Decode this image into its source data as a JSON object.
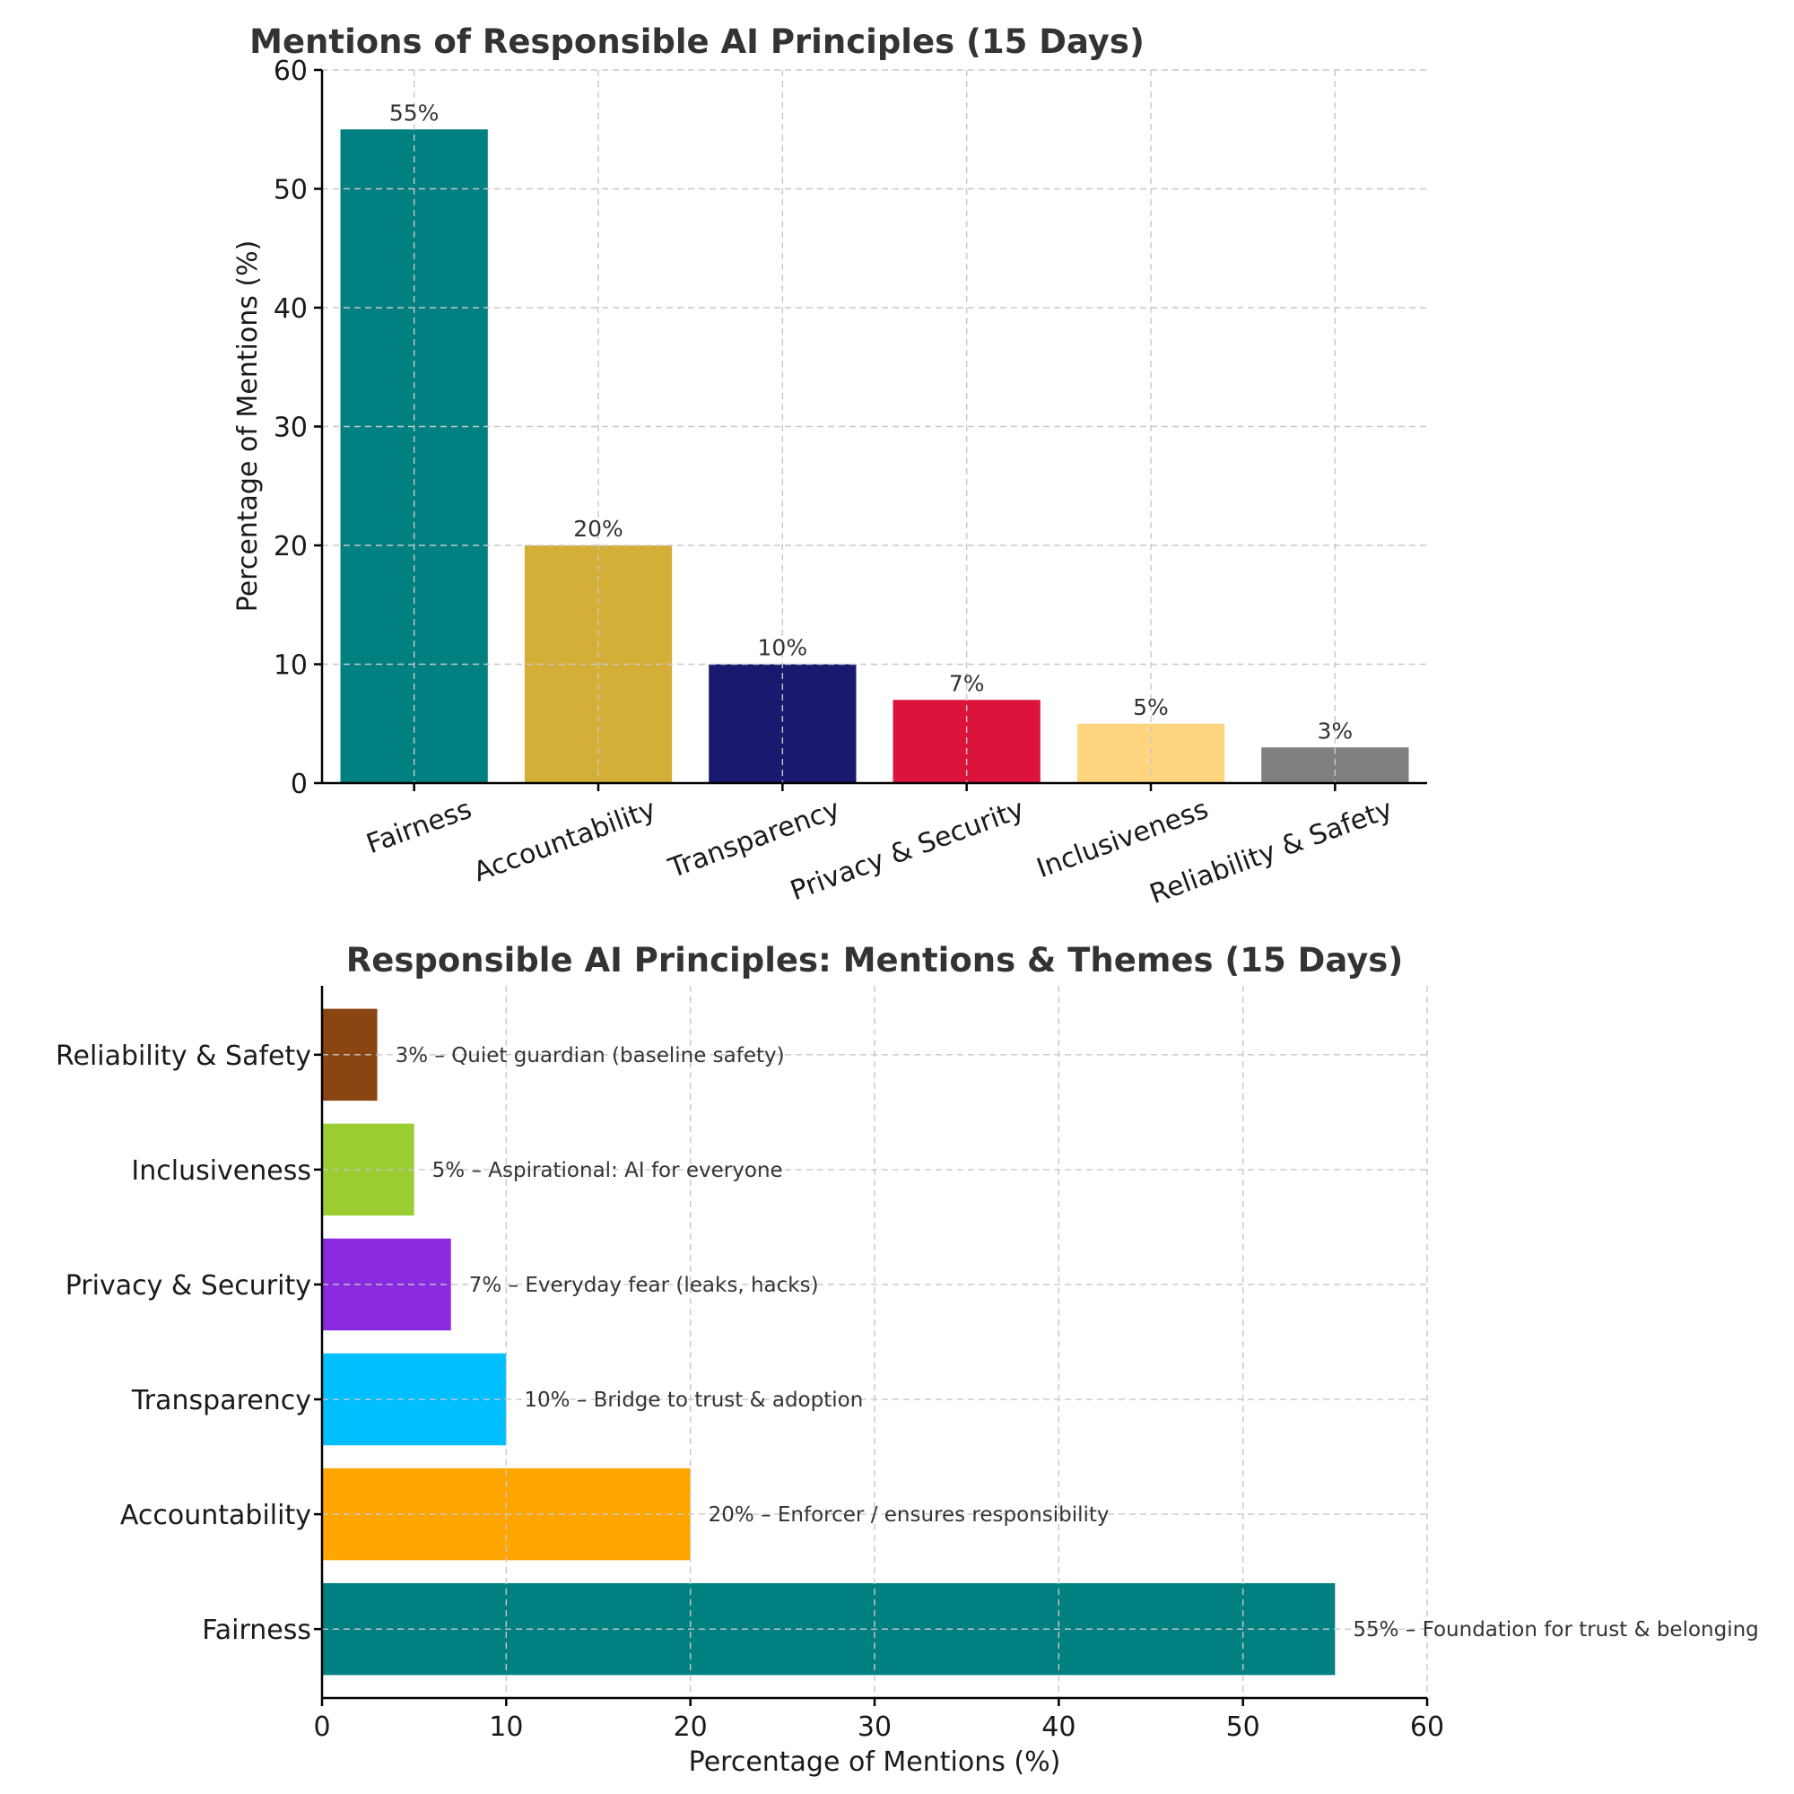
{
  "chart_data": [
    {
      "type": "bar",
      "title": "Mentions of Responsible AI Principles (15 Days)",
      "xlabel": "",
      "ylabel": "Percentage of Mentions (%)",
      "categories": [
        "Fairness",
        "Accountability",
        "Transparency",
        "Privacy & Security",
        "Inclusiveness",
        "Reliability & Safety"
      ],
      "values": [
        55,
        20,
        10,
        7,
        5,
        3
      ],
      "data_labels": [
        "55%",
        "20%",
        "10%",
        "7%",
        "5%",
        "3%"
      ],
      "colors": [
        "#008080",
        "#D4AF37",
        "#191970",
        "#DC143C",
        "#FFD580",
        "#808080"
      ],
      "ylim": [
        0,
        60
      ],
      "yticks": [
        0,
        10,
        20,
        30,
        40,
        50,
        60
      ],
      "grid": true
    },
    {
      "type": "bar",
      "orientation": "horizontal",
      "title": "Responsible AI Principles: Mentions & Themes (15 Days)",
      "xlabel": "Percentage of Mentions (%)",
      "ylabel": "",
      "categories": [
        "Fairness",
        "Accountability",
        "Transparency",
        "Privacy & Security",
        "Inclusiveness",
        "Reliability & Safety"
      ],
      "values": [
        55,
        20,
        10,
        7,
        5,
        3
      ],
      "annotations": [
        "55% – Foundation for trust & belonging",
        "20% – Enforcer / ensures responsibility",
        "10% – Bridge to trust & adoption",
        "7% – Everyday fear (leaks, hacks)",
        "5% – Aspirational: AI for everyone",
        "3% – Quiet guardian (baseline safety)"
      ],
      "colors": [
        "#008080",
        "#FFA500",
        "#00BFFF",
        "#8A2BE2",
        "#9ACD32",
        "#8B4513"
      ],
      "xlim": [
        0,
        60
      ],
      "xticks": [
        0,
        10,
        20,
        30,
        40,
        50,
        60
      ],
      "grid": true
    }
  ]
}
